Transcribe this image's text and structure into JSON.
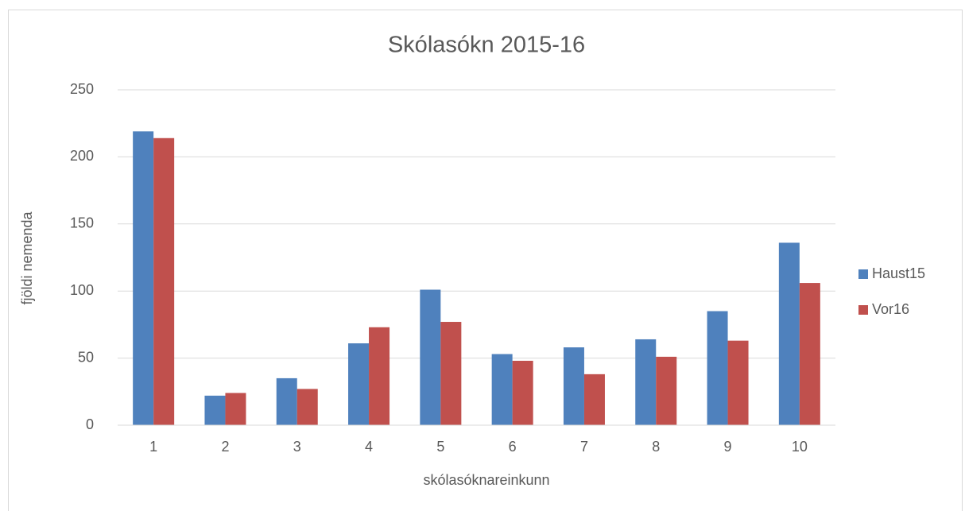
{
  "chart_data": {
    "type": "bar",
    "title": "Skólasókn 2015-16",
    "x_label": "skólasóknareinkunn",
    "y_label": "fjöldi nemenda",
    "categories": [
      "1",
      "2",
      "3",
      "4",
      "5",
      "6",
      "7",
      "8",
      "9",
      "10"
    ],
    "series": [
      {
        "name": "Haust15",
        "color": "#4f81bd",
        "values": [
          219,
          22,
          35,
          61,
          101,
          53,
          58,
          64,
          85,
          136
        ]
      },
      {
        "name": "Vor16",
        "color": "#c0504d",
        "values": [
          214,
          24,
          27,
          73,
          77,
          48,
          38,
          51,
          63,
          106
        ]
      }
    ],
    "ylim": [
      0,
      250
    ],
    "yticks": [
      0,
      50,
      100,
      150,
      200,
      250
    ],
    "grid": true,
    "legend": "right"
  }
}
